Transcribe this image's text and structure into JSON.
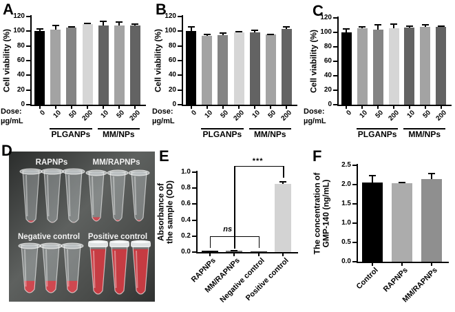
{
  "panels": {
    "a": "A",
    "b": "B",
    "c": "C",
    "d": "D",
    "e": "E",
    "f": "F"
  },
  "charts": [
    {
      "panel": "A",
      "type": "bar",
      "ylabel": "Cell viability (%)",
      "ymax": 120,
      "yticks": [
        "0",
        "20",
        "40",
        "60",
        "80",
        "100",
        "120"
      ],
      "dose_lines": [
        "Dose:",
        "µg/mL"
      ],
      "categories": [
        "0",
        "10",
        "50",
        "200",
        "10",
        "50",
        "200"
      ],
      "values": [
        100,
        102,
        105,
        110,
        108,
        108,
        108
      ],
      "errors": [
        4,
        7,
        2,
        2,
        6,
        5,
        3
      ],
      "colors": [
        "#000000",
        "#a3a3a3",
        "#848484",
        "#d6d6d6",
        "#636363",
        "#a3a3a3",
        "#636363"
      ],
      "groups": [
        {
          "label": "PLGANPs",
          "from": 1,
          "to": 3
        },
        {
          "label": "MM/NPs",
          "from": 4,
          "to": 6
        }
      ]
    },
    {
      "panel": "B",
      "type": "bar",
      "ylabel": "Cell viability (%)",
      "ymax": 120,
      "yticks": [
        "0",
        "20",
        "40",
        "60",
        "80",
        "100",
        "120"
      ],
      "dose_lines": [
        "Dose:",
        "µg/mL"
      ],
      "categories": [
        "0",
        "10",
        "50",
        "200",
        "10",
        "50",
        "200"
      ],
      "values": [
        100,
        94,
        95,
        98,
        98,
        96,
        103
      ],
      "errors": [
        7,
        3,
        3,
        2,
        4,
        1,
        4
      ],
      "colors": [
        "#000000",
        "#a3a3a3",
        "#848484",
        "#d6d6d6",
        "#636363",
        "#a3a3a3",
        "#636363"
      ],
      "groups": [
        {
          "label": "PLGANPs",
          "from": 1,
          "to": 3
        },
        {
          "label": "MM/NPs",
          "from": 4,
          "to": 6
        }
      ]
    },
    {
      "panel": "C",
      "type": "bar",
      "ylabel": "Cell viability (%)",
      "ymax": 120,
      "yticks": [
        "0",
        "20",
        "40",
        "60",
        "80",
        "100",
        "120"
      ],
      "dose_lines": [
        "Dose:",
        "µg/mL"
      ],
      "categories": [
        "0",
        "10",
        "50",
        "200",
        "10",
        "50",
        "200"
      ],
      "values": [
        100,
        106,
        104,
        106,
        107,
        108,
        108
      ],
      "errors": [
        6,
        3,
        7,
        6,
        3,
        3,
        2
      ],
      "colors": [
        "#000000",
        "#a3a3a3",
        "#848484",
        "#d6d6d6",
        "#636363",
        "#a3a3a3",
        "#636363"
      ],
      "groups": [
        {
          "label": "PLGANPs",
          "from": 1,
          "to": 3
        },
        {
          "label": "MM/NPs",
          "from": 4,
          "to": 6
        }
      ]
    },
    {
      "panel": "E",
      "type": "bar",
      "ylabel_lines": [
        "Absorbance of",
        "the sample (OD)"
      ],
      "ymax": 1.0,
      "yticks": [
        "0.0",
        "0.2",
        "0.4",
        "0.6",
        "0.8",
        "1.0"
      ],
      "categories": [
        "RAPNPs",
        "MM/RAPNPs",
        "Negative control",
        "Positive control"
      ],
      "values": [
        0.015,
        0.02,
        0.01,
        0.85
      ],
      "errors": [
        0.006,
        0.008,
        0.004,
        0.04
      ],
      "colors": [
        "#111111",
        "#777777",
        "#2a2a2a",
        "#d3d3d3"
      ],
      "annotations": {
        "ns": {
          "label": "ns",
          "bars": [
            0,
            1,
            2
          ],
          "y": 0.2,
          "leg_to": 0.05
        },
        "sig": {
          "label": "***",
          "from": 1,
          "to": 3,
          "y": 1.08,
          "right_leg_to": 0.93
        }
      }
    },
    {
      "panel": "F",
      "type": "bar",
      "ylabel_lines": [
        "The concentration of",
        "GMP-140 (ng/mL)"
      ],
      "ymax": 2.5,
      "yticks": [
        "0.0",
        "0.5",
        "1.0",
        "1.5",
        "2.0",
        "2.5"
      ],
      "categories": [
        "Control",
        "RAPNPs",
        "MM/RAPNPs"
      ],
      "values": [
        2.05,
        2.04,
        2.14
      ],
      "errors": [
        0.2,
        0.03,
        0.17
      ],
      "colors": [
        "#000000",
        "#acacac",
        "#8f8f8f"
      ]
    }
  ],
  "photo": {
    "background": "#4a4c4a",
    "groups": [
      {
        "label": "RAPNPs",
        "style": "open",
        "fill": 0.1,
        "liquid_color": "#c94b54"
      },
      {
        "label": "MM/RAPNPs",
        "style": "open",
        "fill": 0.14,
        "liquid_color": "#d0454e"
      },
      {
        "label": "Negative control",
        "style": "open",
        "fill": 0.3,
        "liquid_color": "#d6434c"
      },
      {
        "label": "Positive control",
        "style": "capped",
        "fill": 0.95,
        "liquid_color": "#cd363e"
      }
    ]
  }
}
